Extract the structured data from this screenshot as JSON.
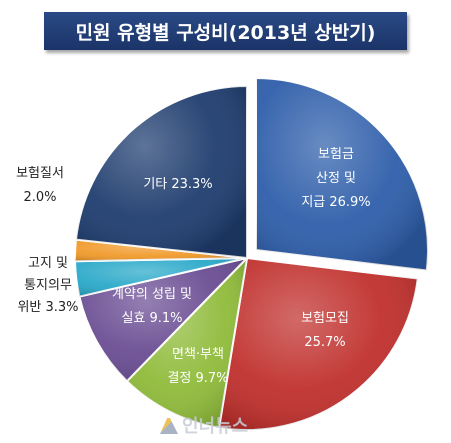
{
  "title": "민원 유형별 구성비(2013년 상반기)",
  "watermark": "인너뉴스",
  "chart_data": {
    "type": "pie",
    "title": "민원 유형별 구성비(2013년 상반기)",
    "unit": "%",
    "slices": [
      {
        "name": "보험금 산정 및 지급",
        "value": 26.9,
        "color": "#2e5eaa",
        "lines": [
          "보험금",
          "산정 및",
          "지급 26.9%"
        ],
        "label_pos": "inside",
        "label_color": "light"
      },
      {
        "name": "보험모집",
        "value": 25.7,
        "color": "#c0302d",
        "lines": [
          "보험모집",
          "25.7%"
        ],
        "label_pos": "inside",
        "label_color": "light"
      },
      {
        "name": "면책·부책 결정",
        "value": 9.7,
        "color": "#8fbb3a",
        "lines": [
          "면책·부책",
          "결정 9.7%"
        ],
        "label_pos": "inside",
        "label_color": "light"
      },
      {
        "name": "계약의 성립 및 실효",
        "value": 9.1,
        "color": "#6a4d93",
        "lines": [
          "계약의 성립 및",
          "실효  9.1%"
        ],
        "label_pos": "inside",
        "label_color": "light"
      },
      {
        "name": "고지 및 통지의무 위반",
        "value": 3.3,
        "color": "#2aa9c9",
        "lines": [
          "고지 및",
          "통지의무",
          "위반 3.3%"
        ],
        "label_pos": "outside",
        "label_color": "dark"
      },
      {
        "name": "보험질서",
        "value": 2.0,
        "color": "#f09a2a",
        "lines": [
          "보험질서",
          "2.0%"
        ],
        "label_pos": "outside",
        "label_color": "dark"
      },
      {
        "name": "기타",
        "value": 23.3,
        "color": "#1f3d6f",
        "lines": [
          "기타 23.3%"
        ],
        "label_pos": "inside",
        "label_color": "light"
      }
    ],
    "exploded": "보험금 산정 및 지급",
    "legend": "none",
    "start_angle_deg": 0,
    "direction": "clockwise"
  }
}
